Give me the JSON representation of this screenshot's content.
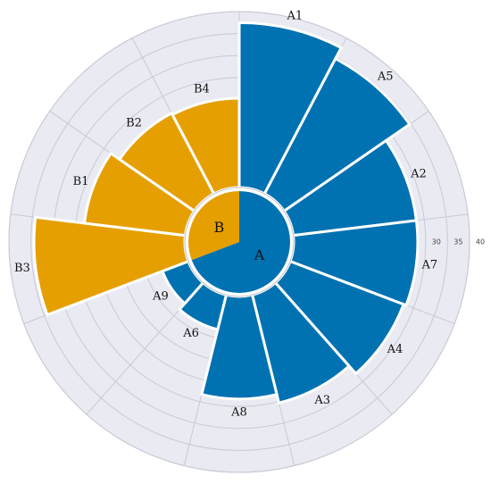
{
  "chart_data": {
    "type": "radial_bar",
    "series": [
      {
        "name": "A",
        "color": "#0072b2",
        "categories": [
          "A1",
          "A5",
          "A2",
          "A7",
          "A4",
          "A3",
          "A8",
          "A6",
          "A9"
        ],
        "values": [
          37.5,
          34.7,
          28.2,
          28.2,
          27.6,
          25.3,
          23.3,
          8.1,
          6.3
        ]
      },
      {
        "name": "B",
        "color": "#e69f00",
        "categories": [
          "B3",
          "B1",
          "B2",
          "B4"
        ],
        "values": [
          34.3,
          23.1,
          20.7,
          20.3
        ]
      }
    ],
    "ylim": [
      0,
      40
    ],
    "yticks": [
      30,
      35,
      40
    ],
    "grid": true
  }
}
